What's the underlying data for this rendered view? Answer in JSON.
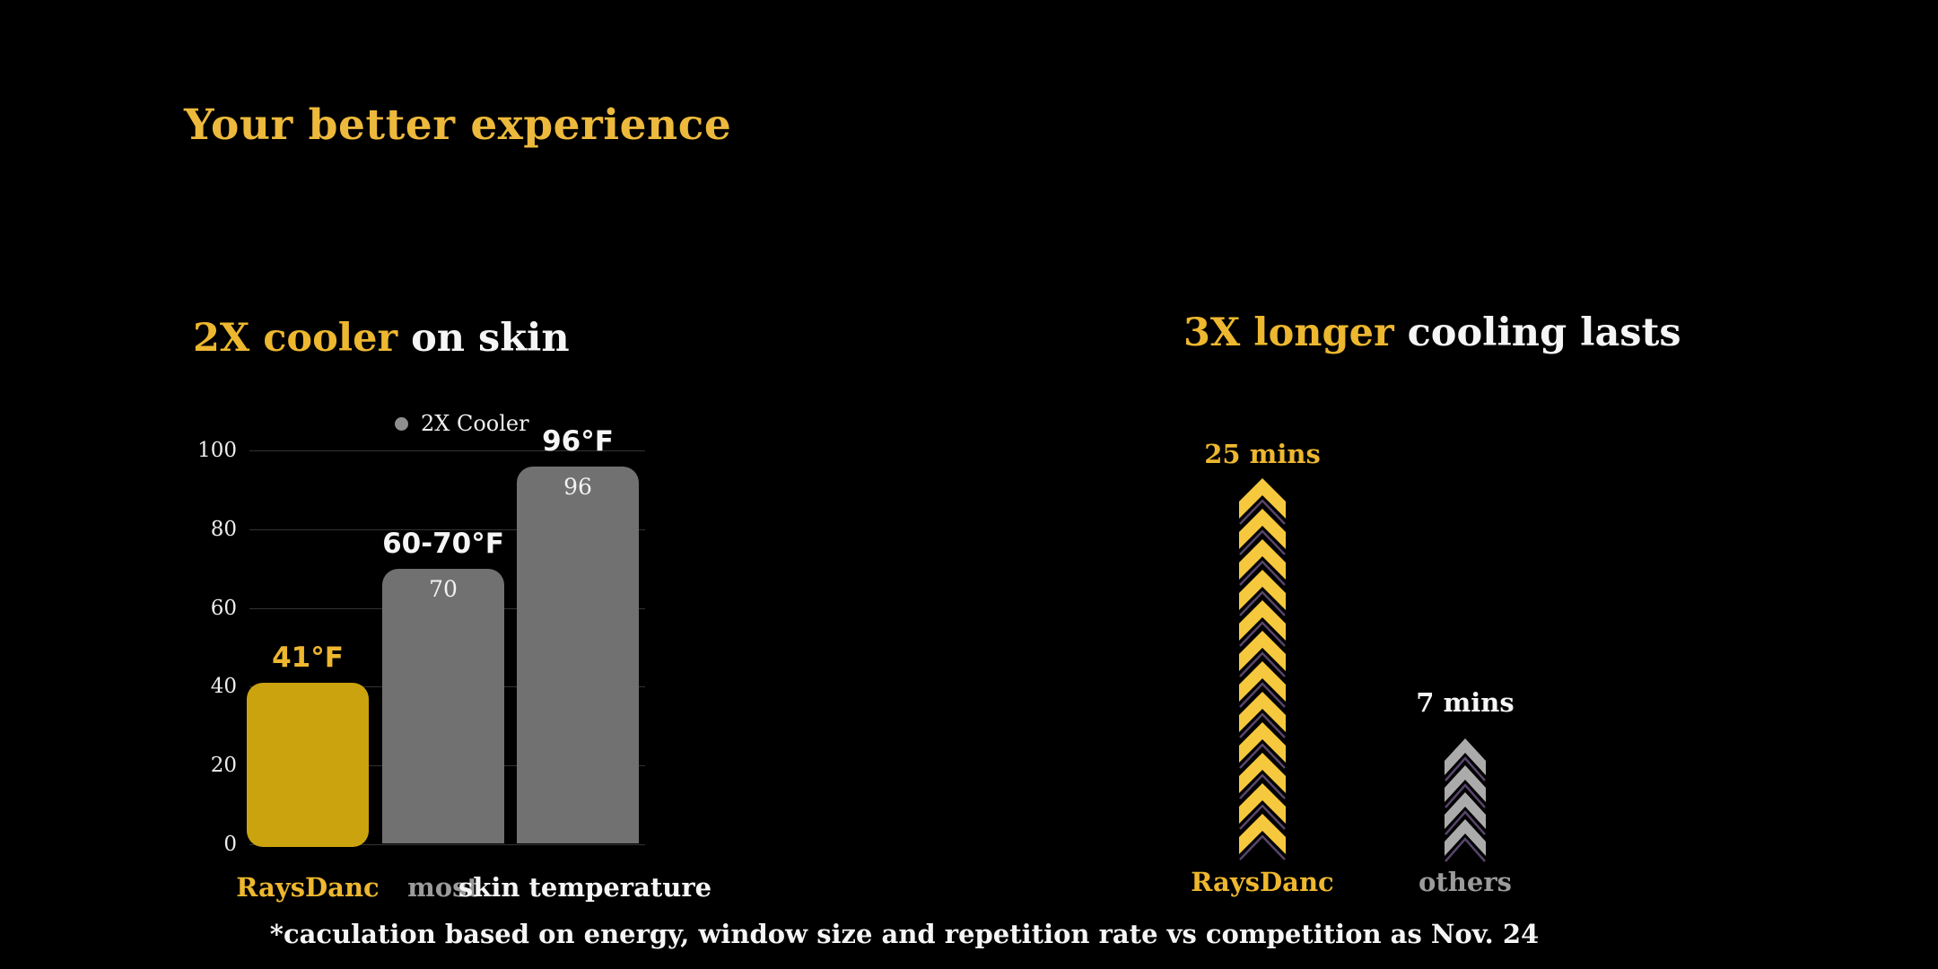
{
  "page": {
    "title": "Your better experience",
    "footnote": "*caculation based on energy, window size and repetition rate vs competition as Nov. 24"
  },
  "colors": {
    "background": "#000000",
    "gold_title": "#EDB93C",
    "gold_text": "#EDB72F",
    "gold_bar": "#CBA30F",
    "gold_chevron": "#F6C83E",
    "white_text": "#F5F5F5",
    "gray_bar": "#717171",
    "gray_text": "#9B9B9B",
    "gray_chevron": "#ABABAB",
    "chevron_outline": "#57456A",
    "gridline": "#333333",
    "legend_dot": "#8E8E8E"
  },
  "left_panel": {
    "heading": {
      "highlight": "2X cooler",
      "rest": " on skin"
    }
  },
  "right_panel": {
    "heading": {
      "highlight": "3X longer",
      "rest": " cooling lasts"
    }
  },
  "chart_data": [
    {
      "type": "bar",
      "title": "2X cooler on skin",
      "legend": [
        {
          "label": "2X Cooler",
          "color": "#8E8E8E"
        }
      ],
      "legend_position": "top",
      "grid": true,
      "ylim": [
        0,
        100
      ],
      "yticks": [
        0,
        20,
        40,
        60,
        80,
        100
      ],
      "categories": [
        "RaysDanc",
        "most",
        "skin temperature"
      ],
      "values": [
        41,
        70,
        96
      ],
      "annotation_labels": [
        "41°F",
        "60-70°F",
        "96°F"
      ],
      "annotation_colors": [
        "#EDB72F",
        "#F5F5F5",
        "#F5F5F5"
      ],
      "value_labels_in_bar": [
        "",
        "70",
        "96"
      ],
      "bar_colors": [
        "#CBA30F",
        "#717171",
        "#717171"
      ],
      "category_colors": [
        "#EDB72F",
        "#9B9B9B",
        "#F5F5F5"
      ]
    },
    {
      "type": "pictogram",
      "title": "3X longer cooling lasts",
      "categories": [
        "RaysDanc",
        "others"
      ],
      "values": [
        25,
        7
      ],
      "unit": "mins",
      "value_labels": [
        "25 mins",
        "7 mins"
      ],
      "value_label_colors": [
        "#EDB72F",
        "#F5F5F5"
      ],
      "icon": "chevron-up",
      "icon_counts": [
        12,
        4
      ],
      "icon_colors": [
        "#F6C83E",
        "#ABABAB"
      ],
      "category_label_colors": [
        "#EDB72F",
        "#9B9B9B"
      ]
    }
  ]
}
